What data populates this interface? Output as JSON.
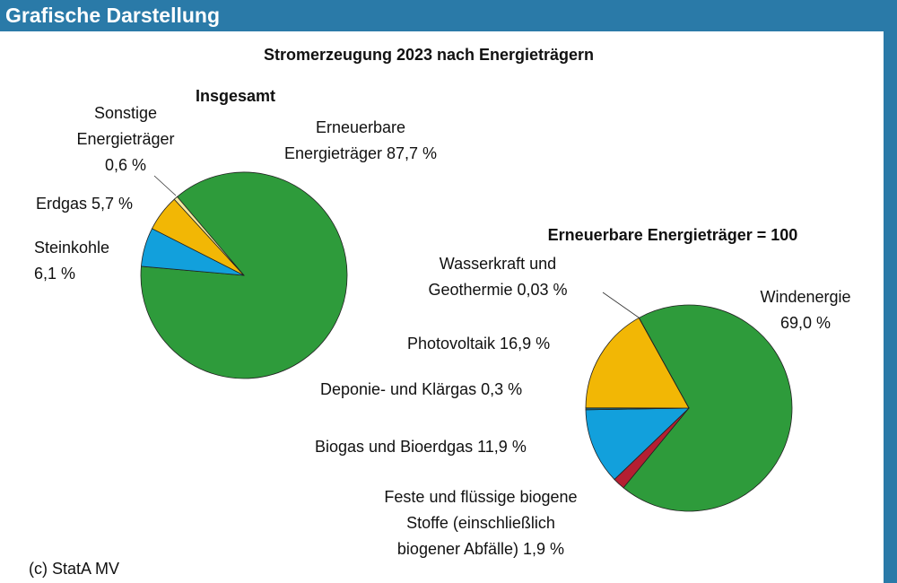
{
  "header": {
    "title": "Grafische Darstellung"
  },
  "copyright": "(c) StatA MV",
  "chart_data": [
    {
      "type": "pie",
      "title": "Stromerzeugung 2023 nach Energieträgern",
      "subtitle": "Insgesamt",
      "slices": [
        {
          "label_lines": [
            "Erneuerbare",
            "Energieträger 87,7 %"
          ],
          "value": 87.7,
          "color": "#2e9b3b"
        },
        {
          "label_lines": [
            "Steinkohle",
            "6,1 %"
          ],
          "value": 6.1,
          "color": "#12a0dc"
        },
        {
          "label_lines": [
            "Erdgas 5,7 %"
          ],
          "value": 5.7,
          "color": "#f2b705"
        },
        {
          "label_lines": [
            "Sonstige",
            "Energieträger",
            "0,6 %"
          ],
          "value": 0.6,
          "color": "#f3e9a0"
        }
      ]
    },
    {
      "type": "pie",
      "subtitle": "Erneuerbare Energieträger = 100",
      "slices": [
        {
          "label_lines": [
            "Windenergie",
            "69,0 %"
          ],
          "value": 69.0,
          "color": "#2e9b3b"
        },
        {
          "label_lines": [
            "Feste und flüssige biogene",
            "Stoffe (einschließlich",
            "biogener Abfälle) 1,9 %"
          ],
          "value": 1.9,
          "color": "#b51f32"
        },
        {
          "label_lines": [
            "Biogas und Bioerdgas 11,9 %"
          ],
          "value": 11.9,
          "color": "#12a0dc"
        },
        {
          "label_lines": [
            "Deponie- und Klärgas 0,3 %"
          ],
          "value": 0.3,
          "color": "#1a6c8c"
        },
        {
          "label_lines": [
            "Photovoltaik 16,9 %"
          ],
          "value": 16.9,
          "color": "#f2b705"
        },
        {
          "label_lines": [
            "Wasserkraft und",
            "Geothermie 0,03 %"
          ],
          "value": 0.03,
          "color": "#9ad0e8"
        }
      ]
    }
  ]
}
